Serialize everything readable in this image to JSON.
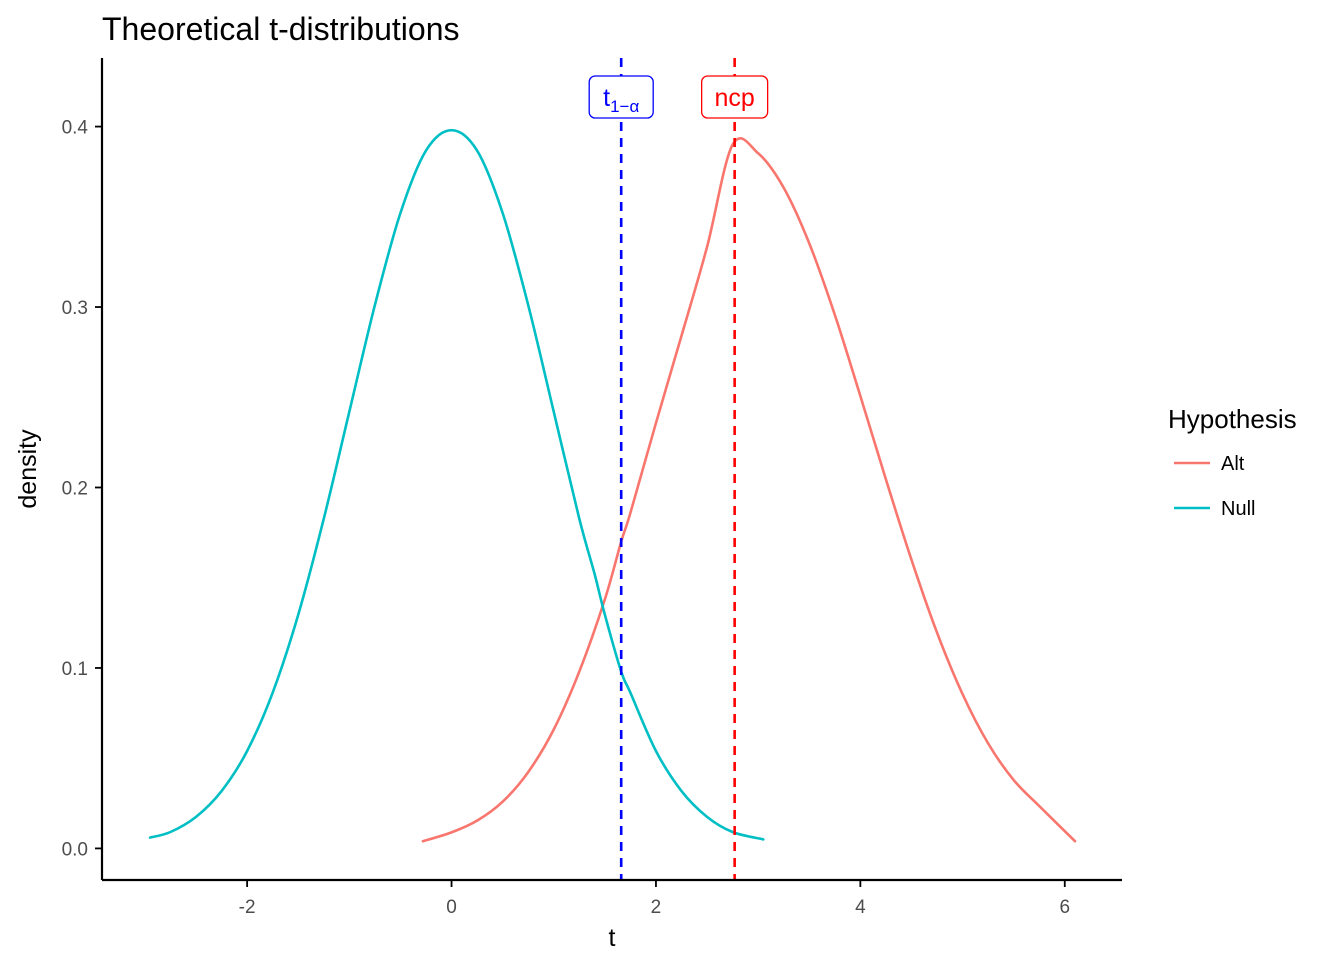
{
  "chart_data": {
    "type": "line",
    "title": "Theoretical t-distributions",
    "xlabel": "t",
    "ylabel": "density",
    "xlim": [
      -3.42,
      6.56
    ],
    "ylim": [
      -0.0175,
      0.438
    ],
    "x_ticks": [
      -2,
      0,
      2,
      4,
      6
    ],
    "x_tick_labels": [
      "-2",
      "0",
      "2",
      "4",
      "6"
    ],
    "y_ticks": [
      0.0,
      0.1,
      0.2,
      0.3,
      0.4
    ],
    "y_tick_labels": [
      "0.0",
      "0.1",
      "0.2",
      "0.3",
      "0.4"
    ],
    "grid": false,
    "legend": {
      "title": "Hypothesis",
      "position": "right",
      "entries": [
        "Alt",
        "Null"
      ]
    },
    "series": [
      {
        "name": "Alt",
        "color": "#F8766D",
        "distribution": "noncentral-t",
        "ncp": 2.77,
        "peak_density": 0.39,
        "x_range": [
          -0.28,
          6.1
        ],
        "points": [
          [
            -0.28,
            0.004
          ],
          [
            0.0,
            0.0089
          ],
          [
            0.25,
            0.0154
          ],
          [
            0.5,
            0.0259
          ],
          [
            0.75,
            0.0423
          ],
          [
            1.0,
            0.0659
          ],
          [
            1.25,
            0.098
          ],
          [
            1.5,
            0.138
          ],
          [
            1.66,
            0.17
          ],
          [
            1.75,
            0.1859
          ],
          [
            2.0,
            0.2357
          ],
          [
            2.25,
            0.2841
          ],
          [
            2.5,
            0.3333
          ],
          [
            2.75,
            0.39
          ],
          [
            3.0,
            0.3852
          ],
          [
            3.25,
            0.3661
          ],
          [
            3.5,
            0.3353
          ],
          [
            3.75,
            0.2957
          ],
          [
            4.0,
            0.2507
          ],
          [
            4.25,
            0.2045
          ],
          [
            4.5,
            0.16
          ],
          [
            4.75,
            0.1196
          ],
          [
            5.0,
            0.0855
          ],
          [
            5.25,
            0.0582
          ],
          [
            5.5,
            0.0379
          ],
          [
            5.75,
            0.0235
          ],
          [
            6.1,
            0.004
          ]
        ]
      },
      {
        "name": "Null",
        "color": "#00BFC4",
        "distribution": "central-t",
        "peak_density": 0.398,
        "x_range": [
          -2.95,
          3.05
        ],
        "points": [
          [
            -2.95,
            0.006
          ],
          [
            -2.75,
            0.0091
          ],
          [
            -2.5,
            0.0175
          ],
          [
            -2.25,
            0.0318
          ],
          [
            -2.0,
            0.054
          ],
          [
            -1.75,
            0.0863
          ],
          [
            -1.5,
            0.1295
          ],
          [
            -1.25,
            0.1827
          ],
          [
            -1.0,
            0.242
          ],
          [
            -0.75,
            0.3011
          ],
          [
            -0.5,
            0.3521
          ],
          [
            -0.25,
            0.3867
          ],
          [
            0.0,
            0.398
          ],
          [
            0.25,
            0.3867
          ],
          [
            0.5,
            0.3521
          ],
          [
            0.75,
            0.3011
          ],
          [
            1.0,
            0.242
          ],
          [
            1.25,
            0.1827
          ],
          [
            1.4,
            0.152
          ],
          [
            1.5,
            0.1295
          ],
          [
            1.66,
            0.098
          ],
          [
            1.75,
            0.0863
          ],
          [
            2.0,
            0.054
          ],
          [
            2.25,
            0.0318
          ],
          [
            2.5,
            0.0175
          ],
          [
            2.75,
            0.0091
          ],
          [
            3.05,
            0.005
          ]
        ]
      }
    ],
    "reference_lines": [
      {
        "name": "t-critical",
        "x": 1.66,
        "color": "#0000FF",
        "style": "dashed",
        "label_main": "t",
        "label_sub": "1−α"
      },
      {
        "name": "ncp",
        "x": 2.77,
        "color": "#FF0000",
        "style": "dashed",
        "label_main": "ncp",
        "label_sub": ""
      }
    ]
  }
}
